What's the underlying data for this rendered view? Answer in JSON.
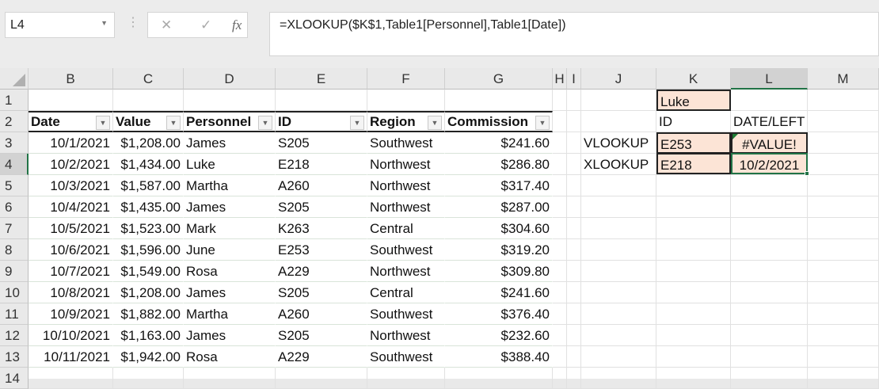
{
  "name_box": "L4",
  "formula": "=XLOOKUP($K$1,Table1[Personnel],Table1[Date])",
  "icons": {
    "cancel": "✕",
    "enter": "✓",
    "fx": "fx"
  },
  "columns": [
    "B",
    "C",
    "D",
    "E",
    "F",
    "G",
    "H",
    "I",
    "J",
    "K",
    "L",
    "M"
  ],
  "rows": [
    "1",
    "2",
    "3",
    "4",
    "5",
    "6",
    "7",
    "8",
    "9",
    "10",
    "11",
    "12",
    "13",
    "14"
  ],
  "table": {
    "headers": [
      "Date",
      "Value",
      "Personnel",
      "ID",
      "Region",
      "Commission"
    ],
    "data": [
      [
        "10/1/2021",
        "$1,208.00",
        "James",
        "S205",
        "Southwest",
        "$241.60"
      ],
      [
        "10/2/2021",
        "$1,434.00",
        "Luke",
        "E218",
        "Northwest",
        "$286.80"
      ],
      [
        "10/3/2021",
        "$1,587.00",
        "Martha",
        "A260",
        "Northwest",
        "$317.40"
      ],
      [
        "10/4/2021",
        "$1,435.00",
        "James",
        "S205",
        "Northwest",
        "$287.00"
      ],
      [
        "10/5/2021",
        "$1,523.00",
        "Mark",
        "K263",
        "Central",
        "$304.60"
      ],
      [
        "10/6/2021",
        "$1,596.00",
        "June",
        "E253",
        "Southwest",
        "$319.20"
      ],
      [
        "10/7/2021",
        "$1,549.00",
        "Rosa",
        "A229",
        "Northwest",
        "$309.80"
      ],
      [
        "10/8/2021",
        "$1,208.00",
        "James",
        "S205",
        "Central",
        "$241.60"
      ],
      [
        "10/9/2021",
        "$1,882.00",
        "Martha",
        "A260",
        "Southwest",
        "$376.40"
      ],
      [
        "10/10/2021",
        "$1,163.00",
        "James",
        "S205",
        "Northwest",
        "$232.60"
      ],
      [
        "10/11/2021",
        "$1,942.00",
        "Rosa",
        "A229",
        "Southwest",
        "$388.40"
      ]
    ]
  },
  "lookup": {
    "k1": "Luke",
    "k2": "ID",
    "l2": "DATE/LEFT",
    "j3": "VLOOKUP",
    "k3": "E253",
    "l3": "#VALUE!",
    "j4": "XLOOKUP",
    "k4": "E218",
    "l4": "10/2/2021"
  },
  "colors": {
    "selection": "#217346",
    "peach": "#fce4d6"
  }
}
